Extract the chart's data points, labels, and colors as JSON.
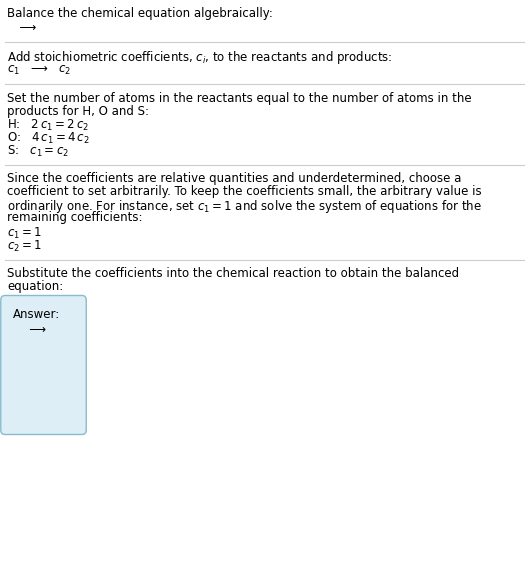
{
  "title_text": "Balance the chemical equation algebraically:",
  "section1_line1": "  ⟶",
  "section2_header": "Add stoichiometric coefficients, $c_i$, to the reactants and products:",
  "section2_line1": "$c_1$   ⟶   $c_2$",
  "section3_header_1": "Set the number of atoms in the reactants equal to the number of atoms in the",
  "section3_header_2": "products for H, O and S:",
  "section3_equations": [
    "H:   $2\\,c_1 = 2\\,c_2$",
    "O:   $4\\,c_1 = 4\\,c_2$",
    "S:   $c_1 = c_2$"
  ],
  "section4_header_lines": [
    "Since the coefficients are relative quantities and underdetermined, choose a",
    "coefficient to set arbitrarily. To keep the coefficients small, the arbitrary value is",
    "ordinarily one. For instance, set $c_1 = 1$ and solve the system of equations for the",
    "remaining coefficients:"
  ],
  "section4_equations": [
    "$c_1 = 1$",
    "$c_2 = 1$"
  ],
  "section5_header_1": "Substitute the coefficients into the chemical reaction to obtain the balanced",
  "section5_header_2": "equation:",
  "answer_label": "Answer:",
  "answer_content": "   ⟶",
  "bg_color": "#ffffff",
  "text_color": "#000000",
  "line_color": "#cccccc",
  "answer_box_facecolor": "#ddeef6",
  "answer_box_edgecolor": "#88bbcc",
  "font_size": 8.5
}
